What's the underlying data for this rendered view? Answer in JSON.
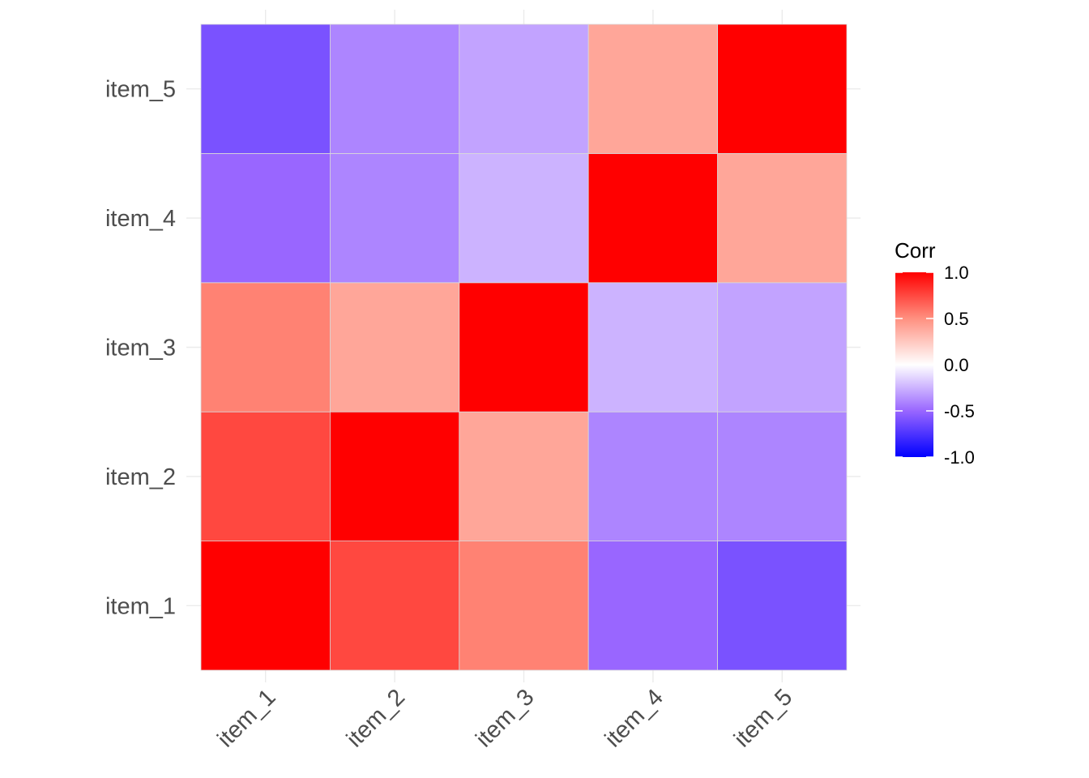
{
  "chart_data": {
    "type": "heatmap",
    "x_categories": [
      "item_1",
      "item_2",
      "item_3",
      "item_4",
      "item_5"
    ],
    "y_categories": [
      "item_1",
      "item_2",
      "item_3",
      "item_4",
      "item_5"
    ],
    "matrix": [
      [
        1.0,
        0.75,
        0.55,
        -0.5,
        -0.6
      ],
      [
        0.75,
        1.0,
        0.4,
        -0.4,
        -0.4
      ],
      [
        0.55,
        0.4,
        1.0,
        -0.25,
        -0.3
      ],
      [
        -0.5,
        -0.4,
        -0.25,
        1.0,
        0.4
      ],
      [
        -0.6,
        -0.4,
        -0.3,
        0.4,
        1.0
      ]
    ],
    "xlabel": "",
    "ylabel": "",
    "title": "",
    "grid": true,
    "legend": {
      "title": "Corr",
      "placement": "right",
      "ticks": [
        "1.0",
        "0.5",
        "0.0",
        "-0.5",
        "-1.0"
      ],
      "tick_values": [
        1.0,
        0.5,
        0.0,
        -0.5,
        -1.0
      ],
      "range": [
        -1,
        1
      ],
      "colors": {
        "low": "#0000ff",
        "mid": "#ffffff",
        "high": "#ff0000"
      }
    }
  }
}
